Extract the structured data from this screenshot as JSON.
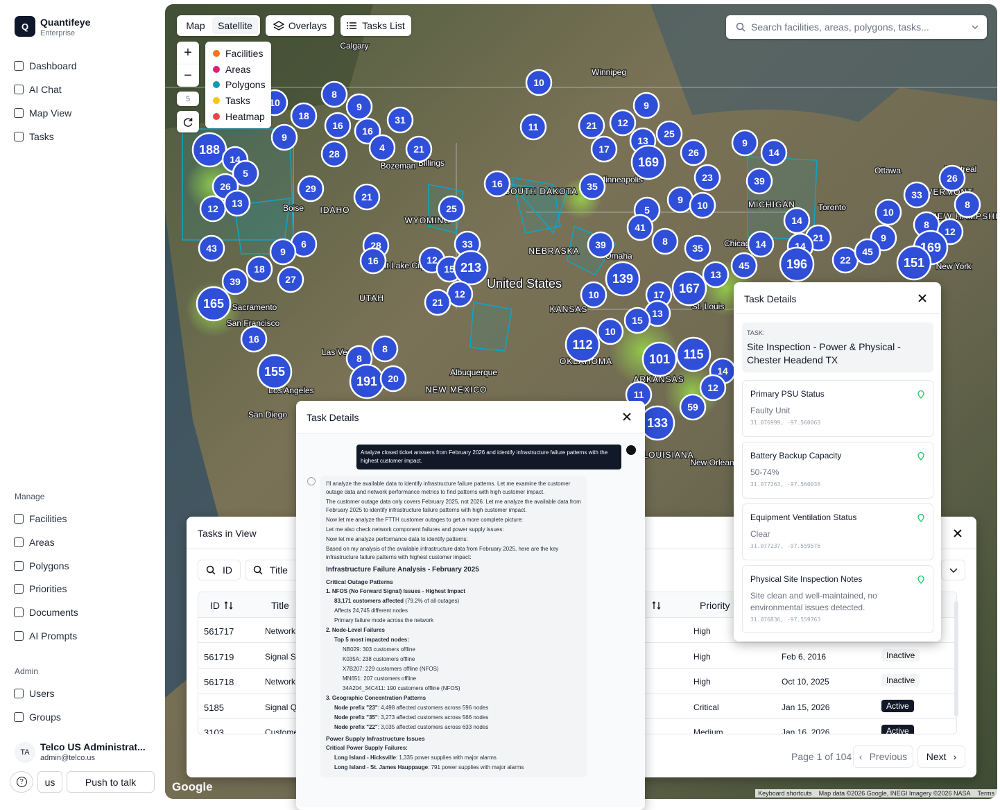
{
  "sidebar": {
    "logo": "Q",
    "brand": "Quantifeye",
    "brand_sub": "Enterprise",
    "nav": [
      "Dashboard",
      "AI Chat",
      "Map View",
      "Tasks"
    ],
    "manage_heading": "Manage",
    "manage": [
      "Facilities",
      "Areas",
      "Polygons",
      "Priorities",
      "Documents",
      "AI Prompts"
    ],
    "admin_heading": "Admin",
    "admin": [
      "Users",
      "Groups"
    ],
    "user": {
      "initials": "TA",
      "name": "Telco US Administrat...",
      "email": "admin@telco.us"
    },
    "footer": {
      "help": "?",
      "lang": "us",
      "ptt": "Push to talk"
    }
  },
  "map": {
    "tabs": [
      "Map",
      "Satellite"
    ],
    "overlays": "Overlays",
    "tasks_list": "Tasks List",
    "search_placeholder": "Search facilities, areas, polygons, tasks...",
    "zoom_in": "+",
    "zoom_out": "−",
    "zoom_level": "5",
    "legend": [
      {
        "name": "Facilities",
        "color": "#f97316"
      },
      {
        "name": "Areas",
        "color": "#e11d74"
      },
      {
        "name": "Polygons",
        "color": "#0e9bb0"
      },
      {
        "name": "Tasks",
        "color": "#f5c518"
      },
      {
        "name": "Heatmap",
        "color": "#ef4444"
      }
    ],
    "cluster_color": "#2f4fd8",
    "clusters": [
      10,
      8,
      9,
      18,
      16,
      16,
      31,
      11,
      21,
      12,
      9,
      10,
      188,
      14,
      9,
      28,
      4,
      21,
      17,
      13,
      25,
      169,
      26,
      9,
      14,
      5,
      26,
      29,
      21,
      16,
      35,
      23,
      39,
      26,
      12,
      13,
      25,
      9,
      10,
      33,
      8,
      5,
      41,
      14,
      10,
      8,
      12,
      43,
      6,
      9,
      28,
      33,
      39,
      8,
      35,
      21,
      14,
      14,
      9,
      169,
      18,
      27,
      39,
      16,
      12,
      15,
      213,
      139,
      13,
      45,
      196,
      22,
      45,
      151,
      165,
      10,
      17,
      167,
      12,
      21,
      13,
      15,
      16,
      10,
      112,
      101,
      115,
      8,
      8,
      155,
      191,
      20,
      14,
      12,
      11,
      59,
      133
    ],
    "places": [
      "Calgary",
      "Winnipeg",
      "Bozeman",
      "Billings",
      "Boise",
      "IDAHO",
      "WYOMING",
      "SOUTH DAKOTA",
      "NEBRASKA",
      "Omaha",
      "United States",
      "KANSAS",
      "Salt Lake City",
      "UTAH",
      "Sacramento",
      "San Francisco",
      "Las Vegas",
      "Los Angeles",
      "San Diego",
      "Albuquerque",
      "NEW MEXICO",
      "OKLAHOMA",
      "ARKANSAS",
      "LOUISIANA",
      "New Orleans",
      "St. Louis",
      "Chicago",
      "MICHIGAN",
      "Toronto",
      "Ottawa",
      "Montreal",
      "VERMONT",
      "NEW HAMPSHIRE",
      "New York",
      "Minneapolis"
    ],
    "attribution": "Google",
    "footer_links": [
      "Keyboard shortcuts",
      "Map data ©2026 Google, INEGI Imagery ©2026 NASA",
      "Terms"
    ]
  },
  "tasks_panel": {
    "title": "Tasks in View",
    "filters": [
      "ID",
      "Title"
    ],
    "columns": [
      "ID",
      "Title",
      "Priority"
    ],
    "rows": [
      {
        "id": "561717",
        "title": "Network",
        "priority": "High"
      },
      {
        "id": "561719",
        "title": "Signal St",
        "priority": "High",
        "date": "Feb 6, 2016",
        "status": "Inactive"
      },
      {
        "id": "561718",
        "title": "Network",
        "priority": "High",
        "date": "Oct 10, 2025",
        "status": "Inactive"
      },
      {
        "id": "5185",
        "title": "Signal Q",
        "priority": "Critical",
        "date": "Jan 15, 2026",
        "status": "Active"
      },
      {
        "id": "3103",
        "title": "Custome",
        "priority": "Medium",
        "date": "Jan 16, 2026",
        "status": "Active"
      }
    ],
    "page_info": "Page 1 of 104",
    "previous": "Previous",
    "next": "Next"
  },
  "chat": {
    "title": "Task Details",
    "user_message": "Analyze closed ticket answers from February 2026 and identify infrastructure failure patterns with the highest customer impact.",
    "lines": [
      {
        "style": "p",
        "text": "I'll analyze the available data to identify infrastructure failure patterns. Let me examine the customer outage data and network performance metrics to find patterns with high customer impact."
      },
      {
        "style": "p",
        "text": "The customer outage data only covers February 2025, not 2026. Let me analyze the available data from February 2025 to identify infrastructure failure patterns with high customer impact."
      },
      {
        "style": "p",
        "text": "Now let me analyze the FTTH customer outages to get a more complete picture:"
      },
      {
        "style": "p",
        "text": "Let me also check network component failures and power supply issues:"
      },
      {
        "style": "p",
        "text": "Now let me analyze performance data to identify patterns:"
      },
      {
        "style": "p",
        "text": "Based on my analysis of the available infrastructure data from February 2025, here are the key infrastructure failure patterns with highest customer impact:"
      },
      {
        "style": "h2",
        "text": "Infrastructure Failure Analysis - February 2025"
      },
      {
        "style": "h3",
        "text": "Critical Outage Patterns"
      },
      {
        "style": "b",
        "text": "1. NFOS (No Forward Signal) Issues - Highest Impact"
      },
      {
        "style": "l1",
        "strong": "83,171 customers affected",
        "text": " (79.2% of all outages)"
      },
      {
        "style": "l1",
        "text": "Affects 24,745 different nodes"
      },
      {
        "style": "l1",
        "text": "Primary failure mode across the network"
      },
      {
        "style": "b",
        "text": "2. Node-Level Failures"
      },
      {
        "style": "l1",
        "strong": "Top 5 most impacted nodes:"
      },
      {
        "style": "l2",
        "text": "NB029: 303 customers offline"
      },
      {
        "style": "l2",
        "text": "K035A: 238 customers offline"
      },
      {
        "style": "l2",
        "text": "X7B207: 229 customers offline (NFOS)"
      },
      {
        "style": "l2",
        "text": "MN651: 207 customers offline"
      },
      {
        "style": "l2",
        "text": "34A204_34C411: 190 customers offline (NFOS)"
      },
      {
        "style": "b",
        "text": "3. Geographic Concentration Patterns"
      },
      {
        "style": "l1",
        "strong": "Node prefix \"23\"",
        "text": ": 4,498 affected customers across 596 nodes"
      },
      {
        "style": "l1",
        "strong": "Node prefix \"35\"",
        "text": ": 3,273 affected customers across 566 nodes"
      },
      {
        "style": "l1",
        "strong": "Node prefix \"22\"",
        "text": ": 3,035 affected customers across 633 nodes"
      },
      {
        "style": "h3",
        "text": "Power Supply Infrastructure Issues"
      },
      {
        "style": "b",
        "text": "Critical Power Supply Failures:"
      },
      {
        "style": "l1",
        "strong": "Long Island - Hicksville",
        "text": ": 1,335 power supplies with major alarms"
      },
      {
        "style": "l1",
        "strong": "Long Island - St. James Hauppauge",
        "text": ": 791 power supplies with major alarms"
      }
    ]
  },
  "task_details": {
    "title": "Task Details",
    "task_label": "TASK:",
    "task_name": "Site Inspection - Power & Physical - Chester Headend TX",
    "fields": [
      {
        "label": "Primary PSU Status",
        "value": "Faulty Unit",
        "coords": "31.076999, -97.560063"
      },
      {
        "label": "Battery Backup Capacity",
        "value": "50-74%",
        "coords": "31.077263, -97.560036"
      },
      {
        "label": "Equipment Ventilation Status",
        "value": "Clear",
        "coords": "31.077237, -97.559576"
      },
      {
        "label": "Physical Site Inspection Notes",
        "value": "Site clean and well-maintained, no environmental issues detected.",
        "coords": "31.076836, -97.559763"
      }
    ]
  }
}
